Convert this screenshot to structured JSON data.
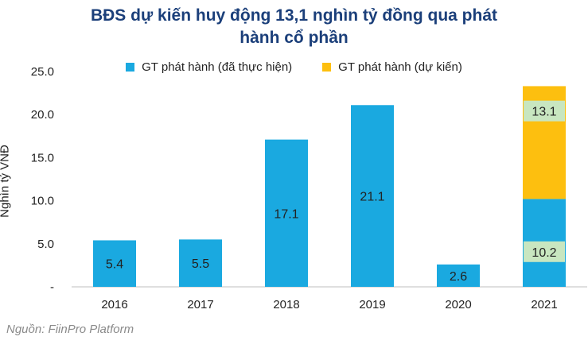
{
  "title": {
    "line1": "BĐS dự kiến huy động 13,1 nghìn tỷ đồng qua phát",
    "line2": "hành cổ phần"
  },
  "source": "Nguồn: FiinPro Platform",
  "colors": {
    "actual": "#1aa9e0",
    "planned": "#fdbf0f",
    "label_box": "#c8e6c0",
    "axis": "#bfbfbf"
  },
  "chart_data": {
    "type": "bar",
    "stacked": true,
    "title": "BĐS dự kiến huy động 13,1 nghìn tỷ đồng qua phát hành cổ phần",
    "xlabel": "",
    "ylabel": "Nghìn tỷ VNĐ",
    "ylim": [
      0,
      25
    ],
    "yticks": [
      {
        "value": 0,
        "label": "-"
      },
      {
        "value": 5,
        "label": "5.0"
      },
      {
        "value": 10,
        "label": "10.0"
      },
      {
        "value": 15,
        "label": "15.0"
      },
      {
        "value": 20,
        "label": "20.0"
      },
      {
        "value": 25,
        "label": "25.0"
      }
    ],
    "grid": false,
    "legend_position": "top",
    "categories": [
      "2016",
      "2017",
      "2018",
      "2019",
      "2020",
      "2021"
    ],
    "series": [
      {
        "name": "GT phát hành (đã thực hiện)",
        "values": [
          5.4,
          5.5,
          17.1,
          21.1,
          2.6,
          10.2
        ],
        "labels": [
          "5.4",
          "5.5",
          "17.1",
          "21.1",
          "2.6",
          "10.2"
        ]
      },
      {
        "name": "GT phát hành (dự kiến)",
        "values": [
          null,
          null,
          null,
          null,
          null,
          13.1
        ],
        "labels": [
          "",
          "",
          "",
          "",
          "",
          "13.1"
        ]
      }
    ]
  }
}
